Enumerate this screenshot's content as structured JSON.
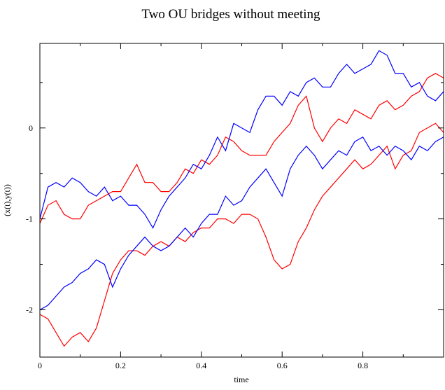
{
  "chart_data": {
    "type": "line",
    "title": "Two OU bridges without meeting",
    "xlabel": "time",
    "ylabel": "(x(t),y(t))",
    "x": [
      0,
      0.02,
      0.04,
      0.06,
      0.08,
      0.1,
      0.12,
      0.14,
      0.16,
      0.18,
      0.2,
      0.22,
      0.24,
      0.26,
      0.28,
      0.3,
      0.32,
      0.34,
      0.36,
      0.38,
      0.4,
      0.42,
      0.44,
      0.46,
      0.48,
      0.5,
      0.52,
      0.54,
      0.56,
      0.58,
      0.6,
      0.62,
      0.64,
      0.66,
      0.68,
      0.7,
      0.72,
      0.74,
      0.76,
      0.78,
      0.8,
      0.82,
      0.84,
      0.86,
      0.88,
      0.9,
      0.92,
      0.94,
      0.96,
      0.98,
      1.0
    ],
    "series": [
      {
        "color": "#ff0000",
        "values": [
          -2.05,
          -2.1,
          -2.25,
          -2.4,
          -2.3,
          -2.25,
          -2.35,
          -2.2,
          -1.9,
          -1.6,
          -1.45,
          -1.35,
          -1.35,
          -1.4,
          -1.3,
          -1.25,
          -1.3,
          -1.2,
          -1.25,
          -1.15,
          -1.1,
          -1.1,
          -1.0,
          -1.0,
          -1.05,
          -0.95,
          -0.95,
          -1.0,
          -1.2,
          -1.45,
          -1.55,
          -1.5,
          -1.25,
          -1.1,
          -0.9,
          -0.75,
          -0.65,
          -0.55,
          -0.45,
          -0.35,
          -0.45,
          -0.4,
          -0.3,
          -0.2,
          -0.45,
          -0.3,
          -0.25,
          -0.05,
          0.0,
          0.05,
          -0.05
        ]
      },
      {
        "color": "#ff0000",
        "values": [
          -1.05,
          -0.85,
          -0.8,
          -0.95,
          -1.0,
          -1.0,
          -0.85,
          -0.8,
          -0.75,
          -0.7,
          -0.7,
          -0.55,
          -0.4,
          -0.6,
          -0.6,
          -0.7,
          -0.7,
          -0.6,
          -0.45,
          -0.5,
          -0.35,
          -0.4,
          -0.3,
          -0.1,
          -0.15,
          -0.25,
          -0.3,
          -0.3,
          -0.3,
          -0.15,
          -0.05,
          0.05,
          0.25,
          0.35,
          0.0,
          -0.15,
          0.0,
          0.1,
          0.05,
          0.2,
          0.15,
          0.1,
          0.25,
          0.3,
          0.2,
          0.25,
          0.35,
          0.4,
          0.55,
          0.6,
          0.55
        ]
      },
      {
        "color": "#0000ff",
        "values": [
          -2.0,
          -1.95,
          -1.85,
          -1.75,
          -1.7,
          -1.6,
          -1.55,
          -1.45,
          -1.5,
          -1.75,
          -1.55,
          -1.4,
          -1.3,
          -1.2,
          -1.3,
          -1.35,
          -1.3,
          -1.2,
          -1.1,
          -1.2,
          -1.05,
          -0.95,
          -0.95,
          -0.75,
          -0.85,
          -0.8,
          -0.65,
          -0.55,
          -0.45,
          -0.6,
          -0.75,
          -0.45,
          -0.3,
          -0.2,
          -0.3,
          -0.45,
          -0.35,
          -0.25,
          -0.3,
          -0.15,
          -0.1,
          -0.25,
          -0.2,
          -0.3,
          -0.2,
          -0.25,
          -0.35,
          -0.2,
          -0.25,
          -0.15,
          -0.1
        ]
      },
      {
        "color": "#0000ff",
        "values": [
          -1.0,
          -0.65,
          -0.6,
          -0.65,
          -0.55,
          -0.6,
          -0.7,
          -0.75,
          -0.65,
          -0.8,
          -0.75,
          -0.85,
          -0.85,
          -0.95,
          -1.1,
          -0.9,
          -0.75,
          -0.65,
          -0.55,
          -0.4,
          -0.45,
          -0.3,
          -0.1,
          -0.25,
          0.05,
          0.0,
          -0.05,
          0.2,
          0.35,
          0.35,
          0.25,
          0.4,
          0.35,
          0.5,
          0.55,
          0.45,
          0.45,
          0.6,
          0.7,
          0.6,
          0.65,
          0.7,
          0.85,
          0.8,
          0.6,
          0.6,
          0.45,
          0.5,
          0.35,
          0.3,
          0.4
        ]
      }
    ],
    "xlim": [
      0,
      1
    ],
    "ylim": [
      -2.52,
      0.93
    ],
    "xticks": [
      0,
      0.2,
      0.4,
      0.6,
      0.8
    ],
    "yticks": [
      -2,
      -1,
      0
    ],
    "xminorticks": [
      0.1,
      0.3,
      0.5,
      0.7,
      0.9
    ],
    "yminorticks": [
      -1.5,
      -0.5,
      0.5
    ]
  }
}
